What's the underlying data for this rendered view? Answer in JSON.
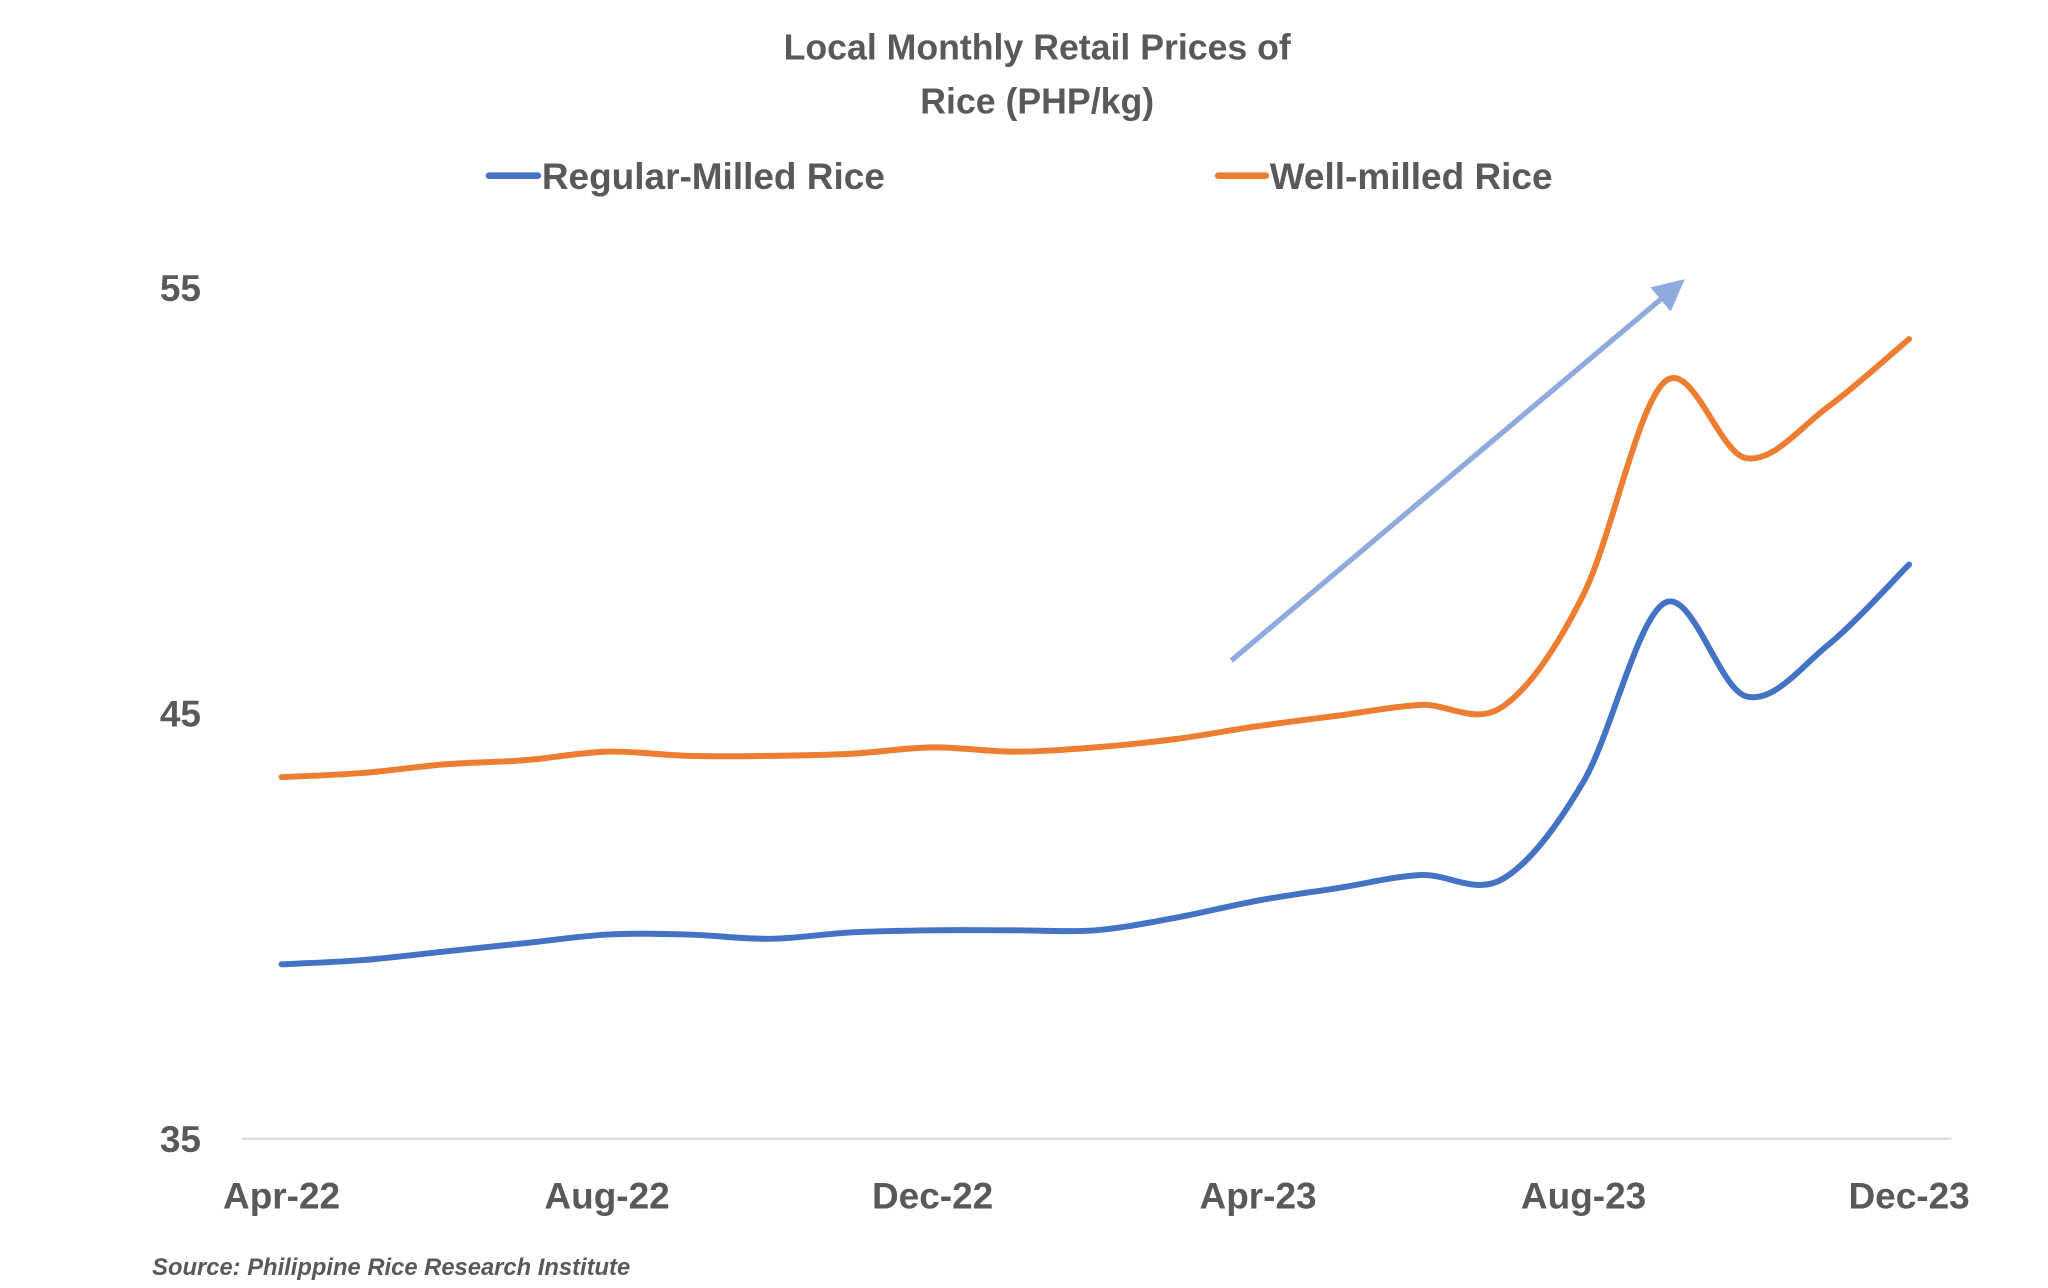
{
  "chart_data": {
    "type": "line",
    "title_lines": [
      "Local Monthly Retail Prices of",
      "Rice (PHP/kg)"
    ],
    "xlabel": "",
    "ylabel": "",
    "x": [
      "Apr-22",
      "May-22",
      "Jun-22",
      "Jul-22",
      "Aug-22",
      "Sep-22",
      "Oct-22",
      "Nov-22",
      "Dec-22",
      "Jan-23",
      "Feb-23",
      "Mar-23",
      "Apr-23",
      "May-23",
      "Jun-23",
      "Jul-23",
      "Aug-23",
      "Sep-23",
      "Oct-23",
      "Nov-23",
      "Dec-23"
    ],
    "x_tick_labels": [
      "Apr-22",
      "Aug-22",
      "Dec-22",
      "Apr-23",
      "Aug-23",
      "Dec-23"
    ],
    "y_tick_labels": [
      "35",
      "45",
      "55"
    ],
    "ylim": [
      35,
      55
    ],
    "grid": false,
    "legend_position": "top",
    "series": [
      {
        "name": "Regular-Milled Rice",
        "color": "#4472C4",
        "values": [
          39.1,
          39.2,
          39.4,
          39.6,
          39.8,
          39.8,
          39.7,
          39.85,
          39.9,
          39.9,
          39.9,
          40.2,
          40.6,
          40.9,
          41.2,
          41.1,
          43.4,
          47.6,
          45.4,
          46.6,
          48.5
        ]
      },
      {
        "name": "Well-milled Rice",
        "color": "#ED7D31",
        "values": [
          43.5,
          43.6,
          43.8,
          43.9,
          44.1,
          44.0,
          44.0,
          44.05,
          44.2,
          44.1,
          44.2,
          44.4,
          44.7,
          44.95,
          45.2,
          45.15,
          47.8,
          52.8,
          51.0,
          52.2,
          53.8
        ]
      }
    ],
    "annotation": {
      "type": "arrow",
      "direction": "upward trend",
      "color": "#8FAADC"
    },
    "source": "Source: Philippine Rice Research Institute"
  }
}
